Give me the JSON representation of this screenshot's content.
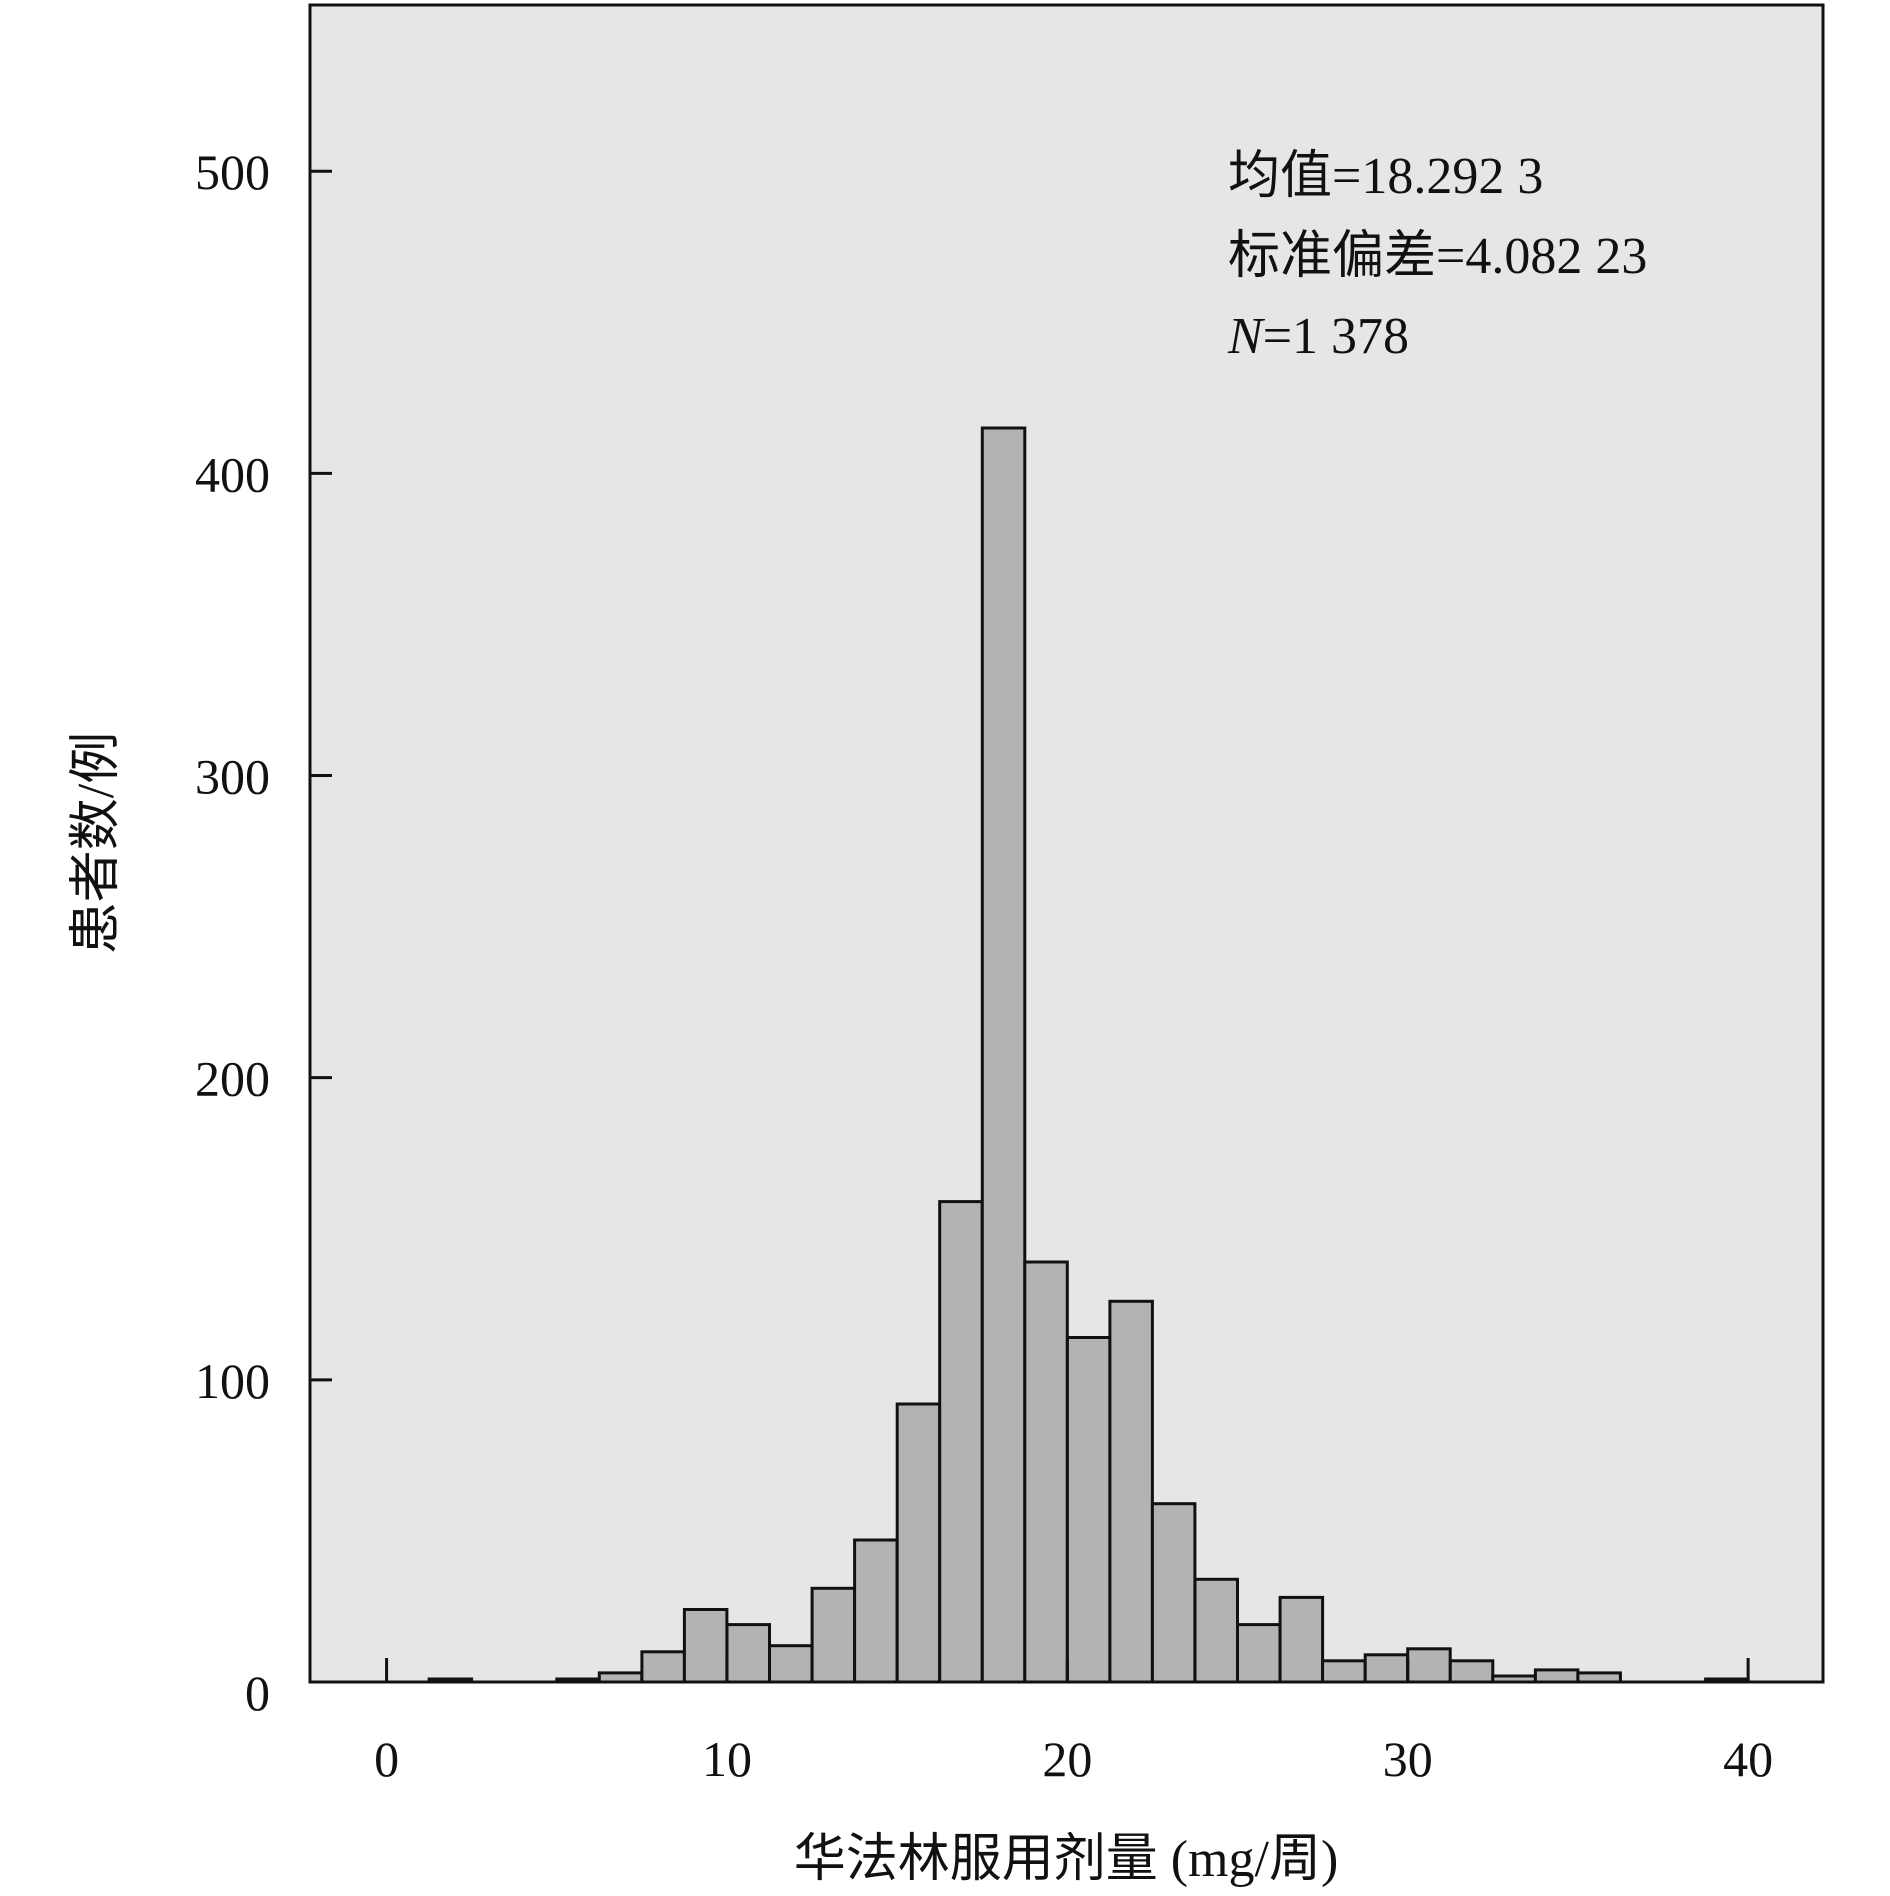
{
  "chart_data": {
    "type": "bar",
    "title": "",
    "xlabel": "华法林服用剂量 (mg/周)",
    "ylabel": "患者数/例",
    "xlim": [
      -2.25,
      42.2
    ],
    "ylim": [
      0,
      555
    ],
    "x_ticks": [
      0,
      10,
      20,
      30,
      40
    ],
    "y_ticks": [
      0,
      100,
      200,
      300,
      400,
      500
    ],
    "grid": false,
    "legend": "none",
    "bar_fill": "#b3b3b3",
    "bar_stroke": "#111111",
    "plot_background": "#e6e6e6",
    "bin_width": 1.25,
    "bins": [
      {
        "start": 1.25,
        "value": 1
      },
      {
        "start": 5.0,
        "value": 1
      },
      {
        "start": 6.25,
        "value": 3
      },
      {
        "start": 7.5,
        "value": 10
      },
      {
        "start": 8.75,
        "value": 24
      },
      {
        "start": 10.0,
        "value": 19
      },
      {
        "start": 11.25,
        "value": 12
      },
      {
        "start": 12.5,
        "value": 31
      },
      {
        "start": 13.75,
        "value": 47
      },
      {
        "start": 15.0,
        "value": 92
      },
      {
        "start": 16.25,
        "value": 159
      },
      {
        "start": 17.5,
        "value": 415
      },
      {
        "start": 18.75,
        "value": 139
      },
      {
        "start": 20.0,
        "value": 114
      },
      {
        "start": 21.25,
        "value": 126
      },
      {
        "start": 22.5,
        "value": 59
      },
      {
        "start": 23.75,
        "value": 34
      },
      {
        "start": 25.0,
        "value": 19
      },
      {
        "start": 26.25,
        "value": 28
      },
      {
        "start": 27.5,
        "value": 7
      },
      {
        "start": 28.75,
        "value": 9
      },
      {
        "start": 30.0,
        "value": 11
      },
      {
        "start": 31.25,
        "value": 7
      },
      {
        "start": 32.5,
        "value": 2
      },
      {
        "start": 33.75,
        "value": 4
      },
      {
        "start": 35.0,
        "value": 3
      },
      {
        "start": 38.75,
        "value": 1
      }
    ],
    "annotations": [
      {
        "id": "mean",
        "text": "均值=18.292 3"
      },
      {
        "id": "std",
        "text": "标准偏差=4.082 23"
      },
      {
        "id": "n",
        "label": "N",
        "text": "=1 378"
      }
    ]
  }
}
